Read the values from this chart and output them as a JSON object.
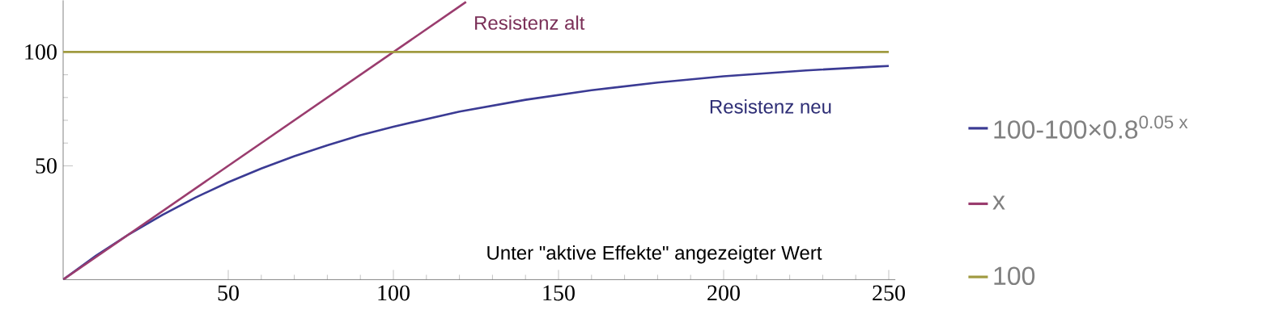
{
  "chart_data": {
    "type": "line",
    "xlabel": "Unter \"aktive Effekte\" angezeigter Wert",
    "xlim": [
      0,
      252
    ],
    "ylim": [
      0,
      122.7
    ],
    "xticks": [
      50,
      100,
      150,
      200,
      250
    ],
    "yticks": [
      50,
      100
    ],
    "legend": "right",
    "series": [
      {
        "name": "100-100×0.8$^{0.05 x}$",
        "color": "#3b3b94",
        "x": [
          0,
          10,
          20,
          30,
          40,
          50,
          60,
          70,
          80,
          90,
          100,
          120,
          140,
          160,
          180,
          200,
          225,
          250
        ],
        "values": [
          0,
          10.6,
          20.0,
          28.4,
          36.0,
          42.8,
          48.8,
          54.2,
          59.0,
          63.4,
          67.2,
          73.8,
          79.0,
          83.2,
          86.6,
          89.3,
          91.9,
          93.9
        ]
      },
      {
        "name": "x",
        "color": "#9a3c6e",
        "x": [
          0,
          122
        ],
        "values": [
          0,
          122
        ]
      },
      {
        "name": "100",
        "color": "#a09a40",
        "x": [
          0,
          250
        ],
        "values": [
          100,
          100
        ]
      }
    ],
    "annotations": [
      "Resistenz alt",
      "Resistenz neu"
    ]
  }
}
